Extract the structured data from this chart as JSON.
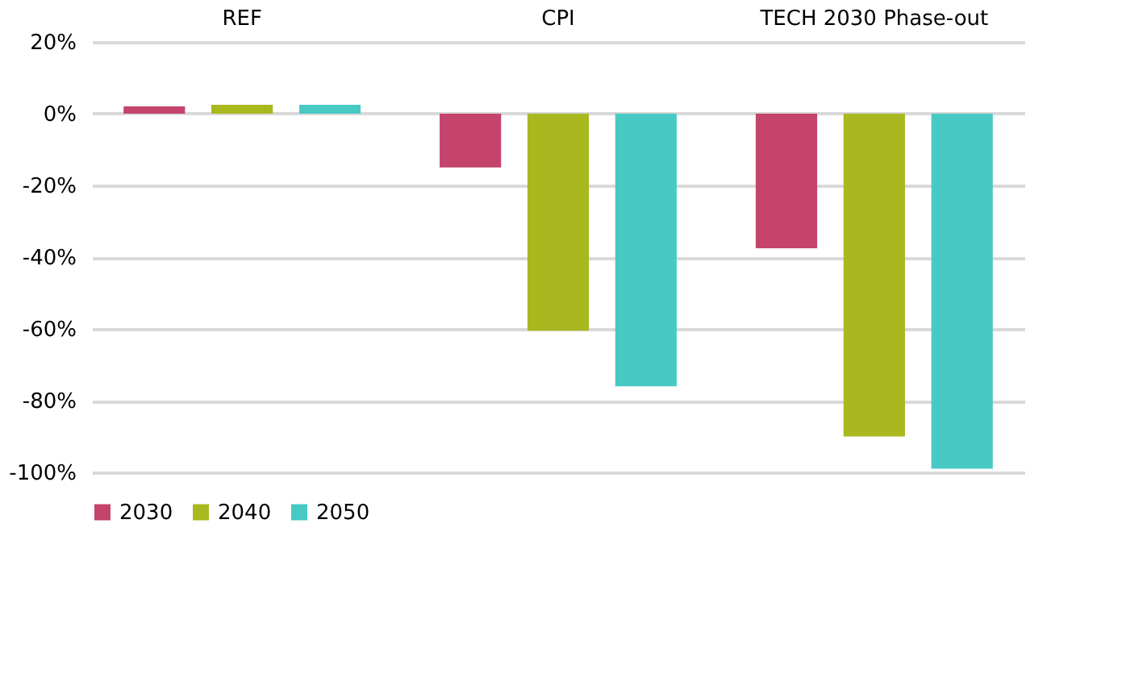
{
  "chart_data": {
    "type": "bar",
    "categories": [
      "REF",
      "CPI",
      "TECH 2030 Phase-out"
    ],
    "series": [
      {
        "name": "2030",
        "color": "#c4446c",
        "values": [
          2,
          -15,
          -37.5
        ]
      },
      {
        "name": "2040",
        "color": "#a9b81e",
        "values": [
          2.5,
          -60.5,
          -90
        ]
      },
      {
        "name": "2050",
        "color": "#48c9c4",
        "values": [
          2.5,
          -76,
          -99
        ]
      }
    ],
    "ylim": [
      -100,
      20
    ],
    "yticks": [
      {
        "value": 20,
        "label": "20%"
      },
      {
        "value": 0,
        "label": "0%"
      },
      {
        "value": -20,
        "label": "-20%"
      },
      {
        "value": -40,
        "label": "-40%"
      },
      {
        "value": -60,
        "label": "-60%"
      },
      {
        "value": -80,
        "label": "-80%"
      },
      {
        "value": -100,
        "label": "-100%"
      }
    ],
    "grid": "y",
    "legend": "bottom"
  }
}
